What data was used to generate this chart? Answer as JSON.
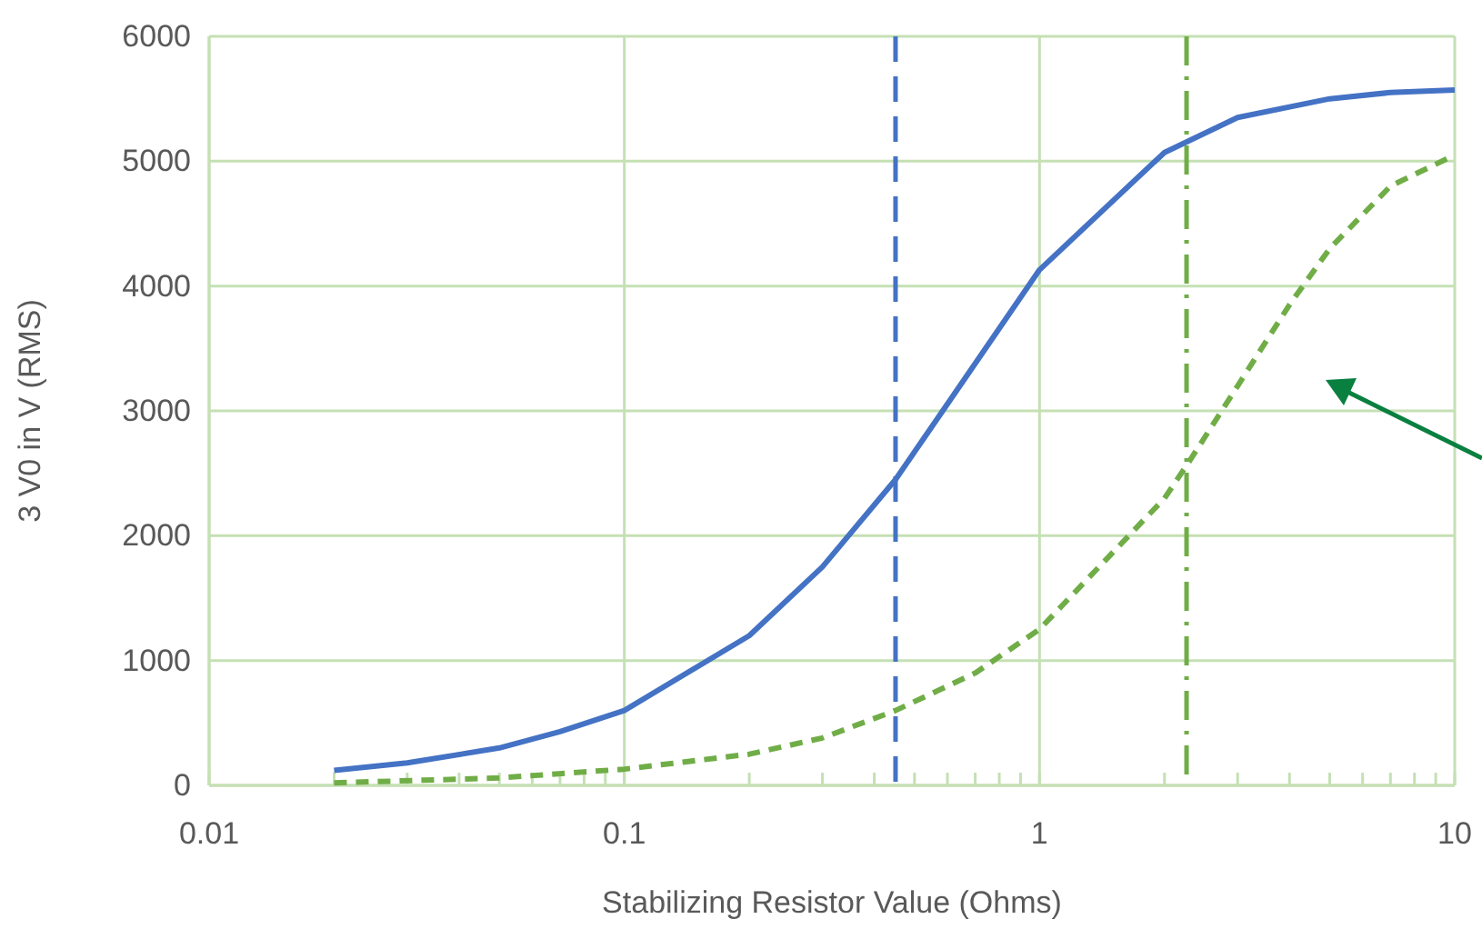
{
  "chart_data": {
    "type": "line",
    "xlabel": "Stabilizing Resistor Value (Ohms)",
    "ylabel": "3 V0 in V (RMS)",
    "log": "x",
    "grid": true,
    "marker": "none",
    "xlim": [
      0.01,
      10
    ],
    "ylim": [
      0,
      6000
    ],
    "xticks": [
      0.01,
      {
        "value": 0.02,
        "label": null
      },
      {
        "value": 0.03,
        "label": null
      },
      {
        "value": 0.04,
        "label": null
      },
      {
        "value": 0.05,
        "label": null
      },
      {
        "value": 0.06,
        "label": null
      },
      {
        "value": 0.07,
        "label": null
      },
      {
        "value": 0.08,
        "label": null
      },
      {
        "value": 0.09,
        "label": null
      },
      0.1,
      {
        "value": 0.2,
        "label": null
      },
      {
        "value": 0.3,
        "label": null
      },
      {
        "value": 0.4,
        "label": null
      },
      {
        "value": 0.5,
        "label": null
      },
      {
        "value": 0.6,
        "label": null
      },
      {
        "value": 0.7,
        "label": null
      },
      {
        "value": 0.8,
        "label": null
      },
      {
        "value": 0.9,
        "label": null
      },
      1,
      {
        "value": 2,
        "label": null
      },
      {
        "value": 3,
        "label": null
      },
      {
        "value": 4,
        "label": null
      },
      {
        "value": 5,
        "label": null
      },
      {
        "value": 6,
        "label": null
      },
      {
        "value": 7,
        "label": null
      },
      {
        "value": 8,
        "label": null
      },
      {
        "value": 9,
        "label": null
      },
      10
    ],
    "yticks": [
      0,
      1000,
      2000,
      3000,
      4000,
      5000,
      6000
    ],
    "series": [
      {
        "color": "#4472c4",
        "line_style": "solid",
        "x": [
          0.02,
          0.03,
          0.05,
          0.07,
          0.1,
          0.2,
          0.3,
          0.45,
          1,
          2,
          3,
          5,
          7,
          10
        ],
        "values": [
          120,
          180,
          300,
          430,
          600,
          1200,
          1750,
          2450,
          4130,
          5070,
          5350,
          5500,
          5550,
          5570
        ]
      },
      {
        "color": "#70ad47",
        "line_style": "dashed",
        "x": [
          0.02,
          0.05,
          0.1,
          0.2,
          0.3,
          0.45,
          0.7,
          1,
          2,
          2.3,
          3,
          4,
          5,
          7,
          10
        ],
        "values": [
          20,
          60,
          130,
          250,
          380,
          600,
          900,
          1250,
          2300,
          2600,
          3200,
          3850,
          4300,
          4800,
          5050
        ]
      }
    ],
    "ref_lines": [
      {
        "axis": "x",
        "value": 0.45,
        "color": "#4472c4",
        "line_style": "dashed"
      },
      {
        "axis": "x",
        "value": 2.26,
        "color": "#70ad47",
        "line_style": "dashdot"
      }
    ]
  }
}
